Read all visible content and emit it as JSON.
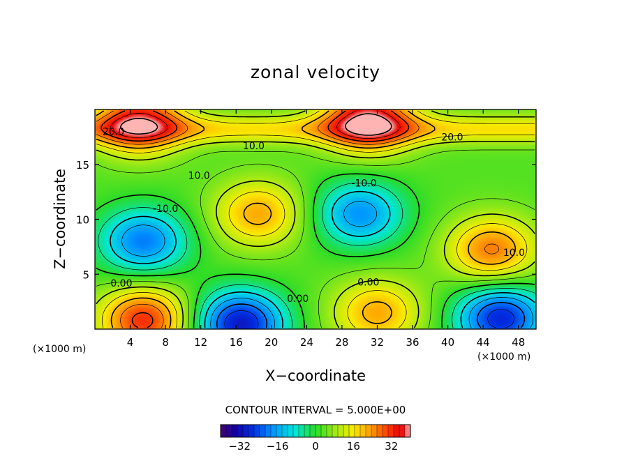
{
  "chart_data": {
    "type": "heatmap",
    "title": "zonal velocity",
    "xlabel": "X−coordinate",
    "ylabel": "Z−coordinate",
    "x_units": "(×1000 m)",
    "x_units_right": "(×1000 m)",
    "xlim": [
      0,
      50
    ],
    "ylim": [
      0,
      20
    ],
    "x_ticks": [
      "4",
      "8",
      "12",
      "16",
      "20",
      "24",
      "28",
      "32",
      "36",
      "40",
      "44",
      "48"
    ],
    "y_ticks": [
      "5",
      "10",
      "15"
    ],
    "x_tick_values": [
      4,
      8,
      12,
      16,
      20,
      24,
      28,
      32,
      36,
      40,
      44,
      48
    ],
    "y_tick_values": [
      5,
      10,
      15
    ],
    "contour_interval_text": "CONTOUR INTERVAL = 5.000E+00",
    "contour_interval": 5.0,
    "colorbar": {
      "range": [
        -40,
        40
      ],
      "tick_labels": [
        "−32",
        "−16",
        "0",
        "16",
        "32"
      ],
      "tick_values": [
        -32,
        -16,
        0,
        16,
        32
      ]
    },
    "contour_labels": [
      {
        "text": "20.0",
        "x": 2.1,
        "y": 18.0
      },
      {
        "text": "20.0",
        "x": 40.5,
        "y": 17.5
      },
      {
        "text": "10.0",
        "x": 18.0,
        "y": 16.7
      },
      {
        "text": "10.0",
        "x": 11.8,
        "y": 14.0
      },
      {
        "text": "-10.0",
        "x": 8.0,
        "y": 11.0
      },
      {
        "text": "-10.0",
        "x": 30.5,
        "y": 13.3
      },
      {
        "text": "0.00",
        "x": 3.0,
        "y": 4.2
      },
      {
        "text": "0.00",
        "x": 31.0,
        "y": 4.3
      },
      {
        "text": "0.00",
        "x": 23.0,
        "y": 2.8
      },
      {
        "text": "10.0",
        "x": 47.5,
        "y": 7.0
      }
    ],
    "field_extrema": [
      {
        "x": 5.5,
        "y": 8.0,
        "value": -20
      },
      {
        "x": 18.5,
        "y": 10.5,
        "value": 22
      },
      {
        "x": 30.0,
        "y": 10.5,
        "value": -18
      },
      {
        "x": 45.0,
        "y": 7.2,
        "value": 26
      },
      {
        "x": 5.5,
        "y": 0.8,
        "value": 32
      },
      {
        "x": 16.5,
        "y": 0.5,
        "value": -30
      },
      {
        "x": 32.0,
        "y": 1.5,
        "value": 22
      },
      {
        "x": 46.0,
        "y": 1.0,
        "value": -28
      },
      {
        "x": 31.0,
        "y": 19.2,
        "value": 36
      },
      {
        "x": 5.0,
        "y": 19.0,
        "value": 32
      }
    ]
  }
}
